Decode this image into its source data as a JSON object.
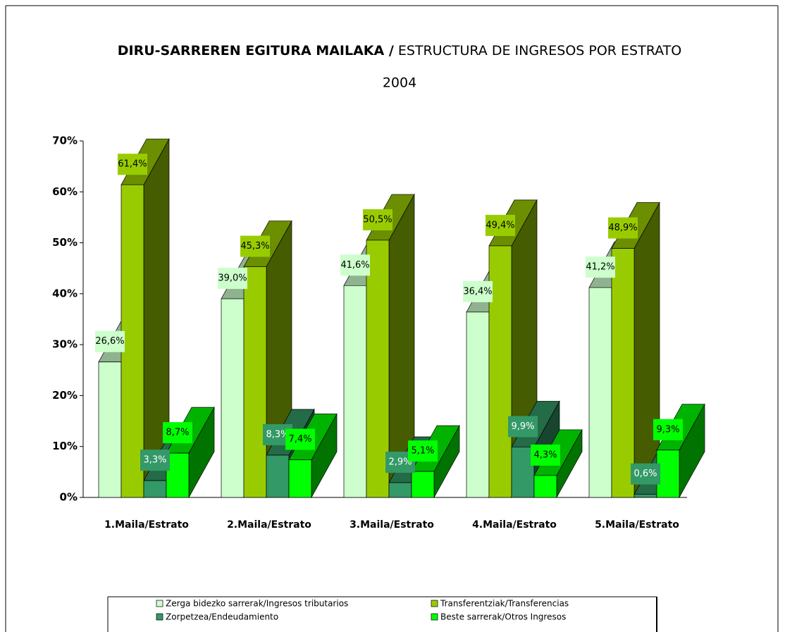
{
  "chart_data": {
    "type": "bar3d",
    "title_parts": [
      "DIRU-SARREREN EGITURA MAILAKA /",
      "ESTRUCTURA DE INGRESOS POR ESTRATO"
    ],
    "subtitle": "2004",
    "categories": [
      "1.Maila/Estrato",
      "2.Maila/Estrato",
      "3.Maila/Estrato",
      "4.Maila/Estrato",
      "5.Maila/Estrato"
    ],
    "series": [
      {
        "name": "Zerga bidezko sarrerak/Ingresos tributarios",
        "color": "#ccffcc",
        "values": [
          26.6,
          39.0,
          41.6,
          36.4,
          41.2
        ],
        "value_labels": [
          "26,6%",
          "39,0%",
          "41,6%",
          "36,4%",
          "41,2%"
        ]
      },
      {
        "name": "Transferentziak/Transferencias",
        "color": "#99cc00",
        "values": [
          61.4,
          45.3,
          50.5,
          49.4,
          48.9
        ],
        "value_labels": [
          "61,4%",
          "45,3%",
          "50,5%",
          "49,4%",
          "48,9%"
        ]
      },
      {
        "name": "Zorpetzea/Endeudamiento",
        "color": "#339966",
        "values": [
          3.3,
          8.3,
          2.9,
          9.9,
          0.6
        ],
        "value_labels": [
          "3,3%",
          "8,3%",
          "2,9%",
          "9,9%",
          "0,6%"
        ]
      },
      {
        "name": "Beste sarrerak/Otros Ingresos",
        "color": "#00ff00",
        "values": [
          8.7,
          7.4,
          5.1,
          4.3,
          9.3
        ],
        "value_labels": [
          "8,7%",
          "7,4%",
          "5,1%",
          "4,3%",
          "9,3%"
        ]
      }
    ],
    "ylim": [
      0,
      70
    ],
    "yticks": [
      {
        "value": 0,
        "label": "0%"
      },
      {
        "value": 10,
        "label": "10%"
      },
      {
        "value": 20,
        "label": "20%"
      },
      {
        "value": 30,
        "label": "30%"
      },
      {
        "value": 40,
        "label": "40%"
      },
      {
        "value": 50,
        "label": "50%"
      },
      {
        "value": 60,
        "label": "60%"
      },
      {
        "value": 70,
        "label": "70%"
      }
    ],
    "legend": "bottom"
  }
}
